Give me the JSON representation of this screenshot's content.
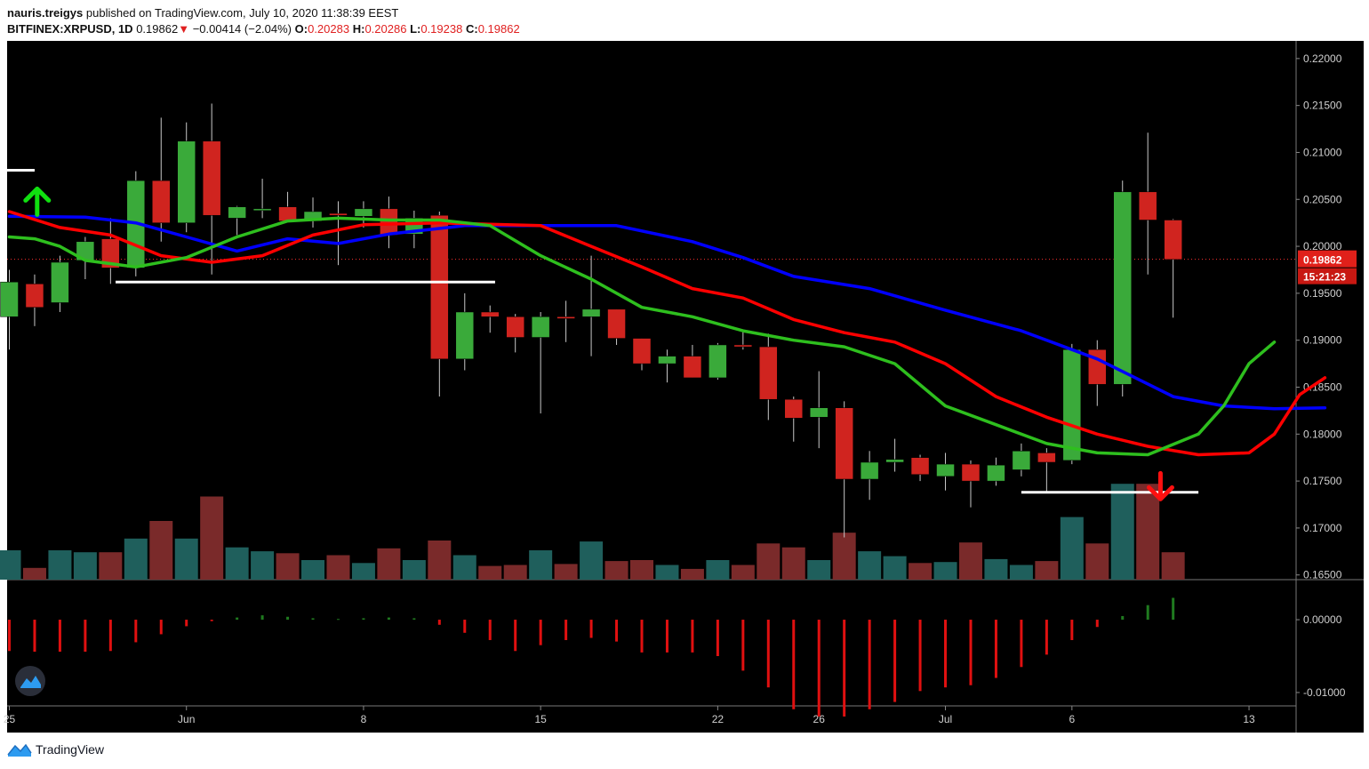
{
  "header": {
    "author": "nauris.treigys",
    "published": "published on TradingView.com, July 10, 2020 11:38:39 EEST",
    "symbol": "BITFINEX:XRPUSD, 1D",
    "last": "0.19862",
    "arrow": "▼",
    "change": "−0.00414 (−2.04%)",
    "o_label": "O:",
    "o": "0.20283",
    "h_label": "H:",
    "h": "0.20286",
    "l_label": "L:",
    "l": "0.19238",
    "c_label": "C:",
    "c": "0.19862"
  },
  "footer": {
    "brand": "TradingView",
    "logo_icon": "tradingview-logo-icon"
  },
  "colors": {
    "background": "#000000",
    "bull": "#3aaa3a",
    "bear": "#d0241f",
    "vol_bull": "#1f5f5c",
    "vol_bear": "#7a2a2a",
    "ma_blue": "#0000ff",
    "ma_red": "#ff0000",
    "ma_green": "#2ebf1e",
    "hist_pos": "#1f7a1f",
    "hist_neg": "#e01010",
    "level_line": "#ffffff"
  },
  "chart_data": {
    "type": "candlestick",
    "price_ylim": [
      0.1645,
      0.2215
    ],
    "price_ticks": [
      "0.22000",
      "0.21500",
      "0.21000",
      "0.20500",
      "0.20000",
      "0.19500",
      "0.19000",
      "0.18500",
      "0.18000",
      "0.17500",
      "0.17000",
      "0.16500"
    ],
    "price_tick_values": [
      0.22,
      0.215,
      0.21,
      0.205,
      0.2,
      0.195,
      0.19,
      0.185,
      0.18,
      0.175,
      0.17,
      0.165
    ],
    "indicator_ticks": [
      "0.00000",
      "-0.01000"
    ],
    "indicator_tick_values": [
      0.0,
      -0.01
    ],
    "indicator_ylim": [
      -0.0155,
      0.0055
    ],
    "x_ticks": [
      {
        "label": "25",
        "i": 0
      },
      {
        "label": "Jun",
        "i": 7
      },
      {
        "label": "8",
        "i": 14
      },
      {
        "label": "15",
        "i": 21
      },
      {
        "label": "22",
        "i": 28
      },
      {
        "label": "26",
        "i": 32
      },
      {
        "label": "Jul",
        "i": 37
      },
      {
        "label": "6",
        "i": 42
      },
      {
        "label": "13",
        "i": 49
      }
    ],
    "last_price_label": "0.19862",
    "countdown_label": "15:21:23",
    "last_price": 0.19862,
    "candles": [
      {
        "o": 0.1925,
        "h": 0.1975,
        "l": 0.189,
        "c": 0.1962
      },
      {
        "o": 0.196,
        "h": 0.197,
        "l": 0.1915,
        "c": 0.1935
      },
      {
        "o": 0.194,
        "h": 0.199,
        "l": 0.193,
        "c": 0.1983
      },
      {
        "o": 0.1985,
        "h": 0.201,
        "l": 0.1965,
        "c": 0.2005
      },
      {
        "o": 0.2008,
        "h": 0.203,
        "l": 0.196,
        "c": 0.1977
      },
      {
        "o": 0.1977,
        "h": 0.208,
        "l": 0.1968,
        "c": 0.207
      },
      {
        "o": 0.207,
        "h": 0.2137,
        "l": 0.2005,
        "c": 0.2025
      },
      {
        "o": 0.2025,
        "h": 0.2132,
        "l": 0.2015,
        "c": 0.2112
      },
      {
        "o": 0.2112,
        "h": 0.2152,
        "l": 0.197,
        "c": 0.2033
      },
      {
        "o": 0.203,
        "h": 0.2043,
        "l": 0.2012,
        "c": 0.2042
      },
      {
        "o": 0.204,
        "h": 0.2072,
        "l": 0.203,
        "c": 0.204
      },
      {
        "o": 0.2042,
        "h": 0.2058,
        "l": 0.2028,
        "c": 0.2027
      },
      {
        "o": 0.2027,
        "h": 0.2052,
        "l": 0.202,
        "c": 0.2037
      },
      {
        "o": 0.2035,
        "h": 0.2048,
        "l": 0.198,
        "c": 0.2033
      },
      {
        "o": 0.2032,
        "h": 0.2048,
        "l": 0.202,
        "c": 0.204
      },
      {
        "o": 0.204,
        "h": 0.2053,
        "l": 0.1998,
        "c": 0.2012
      },
      {
        "o": 0.2013,
        "h": 0.2038,
        "l": 0.1998,
        "c": 0.203
      },
      {
        "o": 0.2033,
        "h": 0.2037,
        "l": 0.184,
        "c": 0.188
      },
      {
        "o": 0.188,
        "h": 0.195,
        "l": 0.1868,
        "c": 0.193
      },
      {
        "o": 0.193,
        "h": 0.1937,
        "l": 0.1908,
        "c": 0.1925
      },
      {
        "o": 0.1925,
        "h": 0.1928,
        "l": 0.1887,
        "c": 0.1903
      },
      {
        "o": 0.1903,
        "h": 0.193,
        "l": 0.1822,
        "c": 0.1925
      },
      {
        "o": 0.1925,
        "h": 0.1942,
        "l": 0.1898,
        "c": 0.1923
      },
      {
        "o": 0.1925,
        "h": 0.199,
        "l": 0.1883,
        "c": 0.1933
      },
      {
        "o": 0.1933,
        "h": 0.1933,
        "l": 0.1895,
        "c": 0.1902
      },
      {
        "o": 0.1902,
        "h": 0.1902,
        "l": 0.1868,
        "c": 0.1875
      },
      {
        "o": 0.1875,
        "h": 0.189,
        "l": 0.1855,
        "c": 0.1883
      },
      {
        "o": 0.1883,
        "h": 0.1895,
        "l": 0.186,
        "c": 0.186
      },
      {
        "o": 0.186,
        "h": 0.1897,
        "l": 0.1858,
        "c": 0.1895
      },
      {
        "o": 0.1895,
        "h": 0.191,
        "l": 0.189,
        "c": 0.1893
      },
      {
        "o": 0.1893,
        "h": 0.1907,
        "l": 0.1815,
        "c": 0.1837
      },
      {
        "o": 0.1837,
        "h": 0.184,
        "l": 0.1792,
        "c": 0.1817
      },
      {
        "o": 0.1818,
        "h": 0.1867,
        "l": 0.1785,
        "c": 0.1828
      },
      {
        "o": 0.1828,
        "h": 0.1835,
        "l": 0.169,
        "c": 0.1752
      },
      {
        "o": 0.1752,
        "h": 0.1782,
        "l": 0.173,
        "c": 0.177
      },
      {
        "o": 0.177,
        "h": 0.1795,
        "l": 0.176,
        "c": 0.1773
      },
      {
        "o": 0.1775,
        "h": 0.1778,
        "l": 0.175,
        "c": 0.1757
      },
      {
        "o": 0.1755,
        "h": 0.178,
        "l": 0.174,
        "c": 0.1768
      },
      {
        "o": 0.1768,
        "h": 0.1772,
        "l": 0.1722,
        "c": 0.175
      },
      {
        "o": 0.175,
        "h": 0.1775,
        "l": 0.1745,
        "c": 0.1767
      },
      {
        "o": 0.1762,
        "h": 0.179,
        "l": 0.1755,
        "c": 0.1782
      },
      {
        "o": 0.178,
        "h": 0.1785,
        "l": 0.1738,
        "c": 0.177
      },
      {
        "o": 0.1772,
        "h": 0.1896,
        "l": 0.1768,
        "c": 0.189
      },
      {
        "o": 0.189,
        "h": 0.19,
        "l": 0.183,
        "c": 0.1853
      },
      {
        "o": 0.1853,
        "h": 0.207,
        "l": 0.184,
        "c": 0.2058
      },
      {
        "o": 0.2058,
        "h": 0.2121,
        "l": 0.197,
        "c": 0.2028
      },
      {
        "o": 0.2028,
        "h": 0.2029,
        "l": 0.1924,
        "c": 0.1986
      }
    ],
    "volume": [
      30,
      12,
      30,
      28,
      28,
      42,
      60,
      42,
      85,
      33,
      29,
      27,
      20,
      25,
      17,
      32,
      20,
      40,
      25,
      14,
      15,
      30,
      16,
      39,
      19,
      20,
      15,
      11,
      20,
      15,
      37,
      33,
      20,
      48,
      29,
      24,
      17,
      18,
      38,
      21,
      15,
      19,
      64,
      37,
      98,
      98,
      28
    ],
    "ma_blue": [
      [
        0,
        0.2032
      ],
      [
        3,
        0.2031
      ],
      [
        5,
        0.2025
      ],
      [
        7,
        0.201
      ],
      [
        9,
        0.1995
      ],
      [
        11,
        0.2008
      ],
      [
        13,
        0.2003
      ],
      [
        15,
        0.2013
      ],
      [
        18,
        0.2022
      ],
      [
        21,
        0.2022
      ],
      [
        24,
        0.2022
      ],
      [
        27,
        0.2005
      ],
      [
        29,
        0.1988
      ],
      [
        31,
        0.1968
      ],
      [
        34,
        0.1955
      ],
      [
        37,
        0.1932
      ],
      [
        40,
        0.191
      ],
      [
        43,
        0.188
      ],
      [
        46,
        0.184
      ],
      [
        48,
        0.183
      ],
      [
        50,
        0.1827
      ],
      [
        52,
        0.1828
      ]
    ],
    "ma_red": [
      [
        0,
        0.2037
      ],
      [
        2,
        0.202
      ],
      [
        4,
        0.2012
      ],
      [
        6,
        0.199
      ],
      [
        8,
        0.1983
      ],
      [
        10,
        0.199
      ],
      [
        12,
        0.2012
      ],
      [
        14,
        0.2023
      ],
      [
        17,
        0.2025
      ],
      [
        21,
        0.2022
      ],
      [
        23,
        0.2
      ],
      [
        25,
        0.1978
      ],
      [
        27,
        0.1955
      ],
      [
        29,
        0.1945
      ],
      [
        31,
        0.1922
      ],
      [
        33,
        0.1908
      ],
      [
        35,
        0.1898
      ],
      [
        37,
        0.1875
      ],
      [
        39,
        0.184
      ],
      [
        41,
        0.1818
      ],
      [
        43,
        0.18
      ],
      [
        45,
        0.1787
      ],
      [
        47,
        0.1778
      ],
      [
        49,
        0.178
      ],
      [
        50,
        0.18
      ],
      [
        51,
        0.1842
      ],
      [
        52,
        0.186
      ]
    ],
    "ma_green": [
      [
        0,
        0.201
      ],
      [
        1,
        0.2008
      ],
      [
        2,
        0.2
      ],
      [
        3,
        0.1985
      ],
      [
        5,
        0.1978
      ],
      [
        7,
        0.1988
      ],
      [
        9,
        0.201
      ],
      [
        11,
        0.2027
      ],
      [
        13,
        0.203
      ],
      [
        15,
        0.2028
      ],
      [
        17,
        0.2028
      ],
      [
        19,
        0.2022
      ],
      [
        21,
        0.199
      ],
      [
        23,
        0.1965
      ],
      [
        25,
        0.1935
      ],
      [
        27,
        0.1925
      ],
      [
        29,
        0.191
      ],
      [
        31,
        0.19
      ],
      [
        33,
        0.1893
      ],
      [
        35,
        0.1875
      ],
      [
        37,
        0.183
      ],
      [
        39,
        0.181
      ],
      [
        41,
        0.179
      ],
      [
        43,
        0.178
      ],
      [
        45,
        0.1778
      ],
      [
        47,
        0.18
      ],
      [
        48,
        0.183
      ],
      [
        49,
        0.1875
      ],
      [
        50,
        0.1898
      ]
    ],
    "histogram": [
      -0.0043,
      -0.0044,
      -0.0044,
      -0.0044,
      -0.0043,
      -0.0031,
      -0.002,
      -0.0009,
      -0.0002,
      0.0003,
      0.0006,
      0.0004,
      0.0002,
      0.0001,
      0.0002,
      0.0003,
      0.0002,
      -0.0007,
      -0.0018,
      -0.0028,
      -0.0043,
      -0.0035,
      -0.0028,
      -0.0025,
      -0.003,
      -0.0045,
      -0.0045,
      -0.0045,
      -0.005,
      -0.007,
      -0.0093,
      -0.0123,
      -0.0133,
      -0.0133,
      -0.0123,
      -0.0113,
      -0.0098,
      -0.0093,
      -0.009,
      -0.008,
      -0.0065,
      -0.0048,
      -0.0028,
      -0.001,
      0.0005,
      0.002,
      0.003
    ],
    "level_lines": [
      {
        "y": 0.2081,
        "i0": -0.4,
        "i1": 1.0
      },
      {
        "y": 0.1962,
        "i0": 4.2,
        "i1": 19.2
      },
      {
        "y": 0.1738,
        "i0": 40.0,
        "i1": 47.0
      }
    ],
    "arrows": [
      {
        "dir": "up",
        "i": 1.1,
        "y": 0.2047
      },
      {
        "dir": "down",
        "i": 45.5,
        "y": 0.1745
      }
    ]
  }
}
